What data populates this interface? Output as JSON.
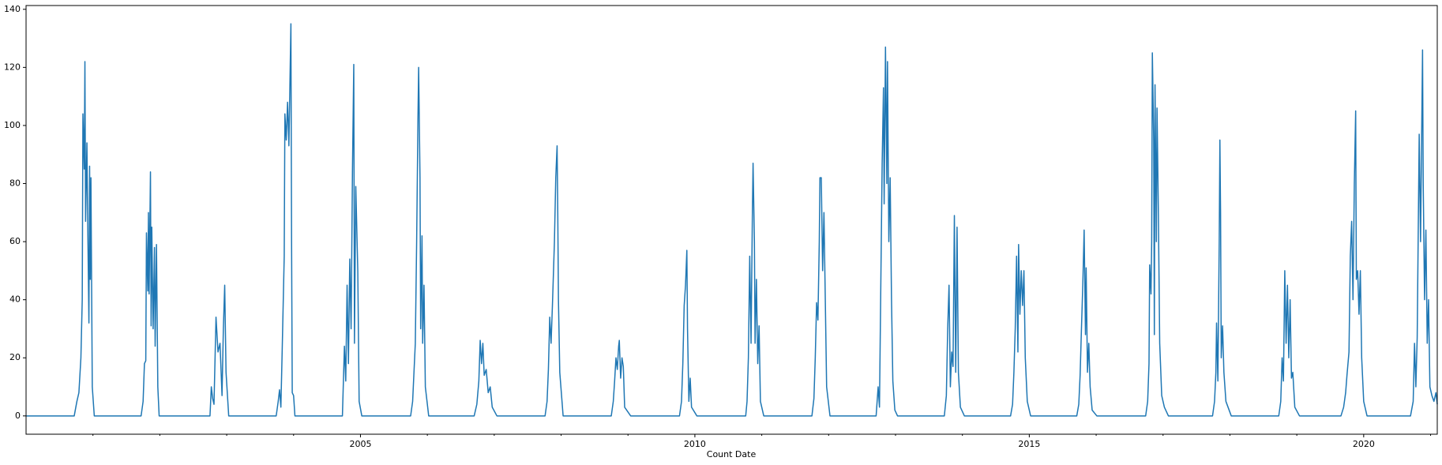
{
  "chart_data": {
    "type": "line",
    "x_label": "Count Date",
    "x": [
      2000.0,
      2000.72,
      2000.76,
      2000.79,
      2000.82,
      2000.84,
      2000.85,
      2000.87,
      2000.88,
      2000.89,
      2000.91,
      2000.92,
      2000.94,
      2000.95,
      2000.96,
      2000.97,
      2000.99,
      2001.02,
      2001.72,
      2001.75,
      2001.77,
      2001.79,
      2001.8,
      2001.82,
      2001.83,
      2001.84,
      2001.86,
      2001.87,
      2001.88,
      2001.9,
      2001.92,
      2001.93,
      2001.95,
      2001.97,
      2001.99,
      2002.75,
      2002.77,
      2002.79,
      2002.81,
      2002.84,
      2002.87,
      2002.9,
      2002.93,
      2002.95,
      2002.97,
      2002.99,
      2003.03,
      2003.74,
      2003.77,
      2003.79,
      2003.81,
      2003.83,
      2003.86,
      2003.87,
      2003.89,
      2003.91,
      2003.93,
      2003.96,
      2003.97,
      2003.98,
      2004.0,
      2004.02,
      2004.73,
      2004.76,
      2004.78,
      2004.8,
      2004.82,
      2004.84,
      2004.86,
      2004.88,
      2004.9,
      2004.91,
      2004.93,
      2004.96,
      2004.98,
      2005.02,
      2005.75,
      2005.78,
      2005.8,
      2005.82,
      2005.84,
      2005.86,
      2005.87,
      2005.89,
      2005.9,
      2005.92,
      2005.93,
      2005.95,
      2005.97,
      2006.02,
      2006.7,
      2006.74,
      2006.77,
      2006.79,
      2006.81,
      2006.83,
      2006.85,
      2006.88,
      2006.91,
      2006.94,
      2006.97,
      2007.04,
      2007.76,
      2007.79,
      2007.81,
      2007.83,
      2007.85,
      2007.87,
      2007.9,
      2007.92,
      2007.94,
      2007.95,
      2007.96,
      2007.98,
      2008.03,
      2008.75,
      2008.78,
      2008.8,
      2008.82,
      2008.84,
      2008.86,
      2008.87,
      2008.89,
      2008.91,
      2008.93,
      2008.95,
      2009.04,
      2009.77,
      2009.8,
      2009.82,
      2009.84,
      2009.86,
      2009.88,
      2009.89,
      2009.91,
      2009.93,
      2009.95,
      2010.03,
      2010.76,
      2010.78,
      2010.8,
      2010.82,
      2010.84,
      2010.86,
      2010.87,
      2010.89,
      2010.9,
      2010.92,
      2010.94,
      2010.96,
      2010.98,
      2011.03,
      2011.75,
      2011.78,
      2011.8,
      2011.82,
      2011.84,
      2011.86,
      2011.87,
      2011.89,
      2011.91,
      2011.93,
      2011.95,
      2011.97,
      2012.02,
      2012.71,
      2012.74,
      2012.76,
      2012.78,
      2012.8,
      2012.82,
      2012.83,
      2012.85,
      2012.87,
      2012.88,
      2012.9,
      2012.92,
      2012.94,
      2012.96,
      2012.99,
      2013.03,
      2013.73,
      2013.76,
      2013.78,
      2013.8,
      2013.82,
      2013.84,
      2013.86,
      2013.88,
      2013.9,
      2013.92,
      2013.94,
      2013.97,
      2014.03,
      2014.72,
      2014.75,
      2014.77,
      2014.79,
      2014.81,
      2014.83,
      2014.84,
      2014.86,
      2014.88,
      2014.9,
      2014.92,
      2014.94,
      2014.97,
      2015.02,
      2015.71,
      2015.74,
      2015.76,
      2015.78,
      2015.8,
      2015.82,
      2015.84,
      2015.85,
      2015.87,
      2015.89,
      2015.91,
      2015.94,
      2016.01,
      2016.74,
      2016.77,
      2016.79,
      2016.8,
      2016.82,
      2016.83,
      2016.84,
      2016.86,
      2016.87,
      2016.88,
      2016.9,
      2016.91,
      2016.93,
      2016.95,
      2016.98,
      2017.02,
      2017.08,
      2017.74,
      2017.77,
      2017.79,
      2017.8,
      2017.82,
      2017.84,
      2017.85,
      2017.86,
      2017.87,
      2017.89,
      2017.91,
      2017.94,
      2018.02,
      2018.73,
      2018.76,
      2018.78,
      2018.8,
      2018.82,
      2018.84,
      2018.86,
      2018.88,
      2018.9,
      2018.92,
      2018.94,
      2018.97,
      2019.04,
      2019.66,
      2019.7,
      2019.73,
      2019.75,
      2019.78,
      2019.8,
      2019.82,
      2019.84,
      2019.86,
      2019.88,
      2019.89,
      2019.91,
      2019.93,
      2019.95,
      2019.97,
      2020.0,
      2020.05,
      2020.7,
      2020.74,
      2020.76,
      2020.78,
      2020.8,
      2020.83,
      2020.85,
      2020.88,
      2020.89,
      2020.91,
      2020.93,
      2020.95,
      2020.97,
      2020.99,
      2021.02,
      2021.05,
      2021.08,
      2021.1
    ],
    "values": [
      0,
      0,
      5,
      8,
      20,
      40,
      104,
      85,
      122,
      67,
      94,
      70,
      32,
      86,
      47,
      82,
      10,
      0,
      0,
      5,
      18,
      19,
      63,
      43,
      70,
      42,
      84,
      31,
      65,
      30,
      58,
      24,
      59,
      10,
      0,
      0,
      10,
      6,
      4,
      34,
      22,
      25,
      7,
      30,
      45,
      15,
      0,
      0,
      5,
      9,
      3,
      23,
      55,
      104,
      95,
      108,
      93,
      135,
      60,
      8,
      7,
      0,
      0,
      24,
      12,
      45,
      18,
      54,
      30,
      84,
      121,
      25,
      79,
      50,
      5,
      0,
      0,
      5,
      15,
      25,
      60,
      103,
      120,
      82,
      30,
      62,
      25,
      45,
      10,
      0,
      0,
      4,
      12,
      26,
      18,
      25,
      14,
      16,
      8,
      10,
      3,
      0,
      0,
      5,
      16,
      34,
      25,
      38,
      60,
      82,
      93,
      70,
      40,
      15,
      0,
      0,
      5,
      12,
      20,
      16,
      24,
      26,
      13,
      20,
      17,
      3,
      0,
      0,
      5,
      18,
      38,
      45,
      57,
      30,
      5,
      13,
      3,
      0,
      0,
      5,
      20,
      55,
      25,
      70,
      87,
      60,
      25,
      47,
      18,
      31,
      5,
      0,
      0,
      6,
      20,
      39,
      33,
      60,
      82,
      82,
      50,
      70,
      40,
      10,
      0,
      0,
      10,
      3,
      45,
      87,
      113,
      73,
      127,
      80,
      122,
      60,
      82,
      40,
      12,
      2,
      0,
      0,
      7,
      30,
      45,
      10,
      22,
      17,
      69,
      15,
      65,
      15,
      3,
      0,
      0,
      4,
      15,
      30,
      55,
      22,
      59,
      35,
      50,
      38,
      50,
      20,
      5,
      0,
      0,
      4,
      14,
      30,
      45,
      64,
      28,
      51,
      15,
      25,
      10,
      2,
      0,
      0,
      5,
      18,
      52,
      42,
      60,
      125,
      95,
      28,
      114,
      60,
      106,
      70,
      25,
      7,
      3,
      0,
      0,
      5,
      15,
      32,
      12,
      60,
      95,
      70,
      20,
      31,
      15,
      5,
      0,
      0,
      5,
      20,
      12,
      50,
      25,
      45,
      20,
      40,
      13,
      15,
      3,
      0,
      0,
      3,
      8,
      14,
      22,
      55,
      67,
      40,
      80,
      105,
      47,
      50,
      35,
      50,
      20,
      5,
      0,
      0,
      5,
      25,
      10,
      27,
      97,
      60,
      126,
      80,
      40,
      64,
      25,
      40,
      10,
      7,
      5,
      8,
      4
    ],
    "color": "#1f77b4",
    "xlim": [
      2000.0,
      2021.1
    ],
    "ylim": [
      -6.3,
      141.3
    ],
    "xticks": [
      2005,
      2010,
      2015,
      2020
    ],
    "xminorticks": [
      2001,
      2002,
      2003,
      2004,
      2006,
      2007,
      2008,
      2009,
      2011,
      2012,
      2013,
      2014,
      2016,
      2017,
      2018,
      2019,
      2021
    ],
    "yticks": [
      0,
      20,
      40,
      60,
      80,
      100,
      120,
      140
    ]
  }
}
